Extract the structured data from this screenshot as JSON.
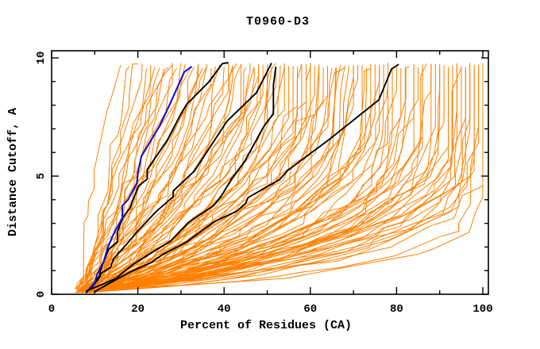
{
  "figure": {
    "title": "T0960-D3"
  },
  "colors": {
    "orange": "#ff8000",
    "black": "#000000",
    "blue": "#1010d8",
    "frame": "#000000",
    "background": "#ffffff"
  },
  "chart_data": {
    "type": "line",
    "title": "T0960-D3",
    "xlabel": "Percent of Residues (CA)",
    "ylabel": "Distance Cutoff, A",
    "xlim": [
      0,
      101.3
    ],
    "ylim": [
      0,
      10.3
    ],
    "x_major_ticks": [
      0,
      20,
      40,
      60,
      80,
      100
    ],
    "x_minor_ticks": [
      10,
      30,
      50,
      70,
      90
    ],
    "y_major_ticks": [
      0,
      5,
      10
    ],
    "y_minor_ticks": [
      1,
      2,
      3,
      4,
      6,
      7,
      8,
      9
    ],
    "grid": false,
    "legend": null,
    "description": "Cumulative plot: percent of CA residues (x) under a distance cutoff in Angstroms (y). Each curve is one model. Curves are approximated by start percent x0, final percent x1 at cutoff ~9.7, and shape factor q (x = x0 + (x1-x0)*(1-(1-y/ytop)^q)).",
    "curves": {
      "blue_curve": {
        "color_key": "blue",
        "x0": 8.5,
        "x1": 32.5,
        "q": 0.85
      },
      "black_curves": [
        {
          "x0": 9.0,
          "x1": 41.0,
          "q": 0.72
        },
        {
          "x0": 8.0,
          "x1": 51.0,
          "q": 1.1
        },
        {
          "x0": 8.0,
          "x1": 52.0,
          "q": 2.15
        },
        {
          "x0": 10.0,
          "x1": 80.5,
          "q": 1.35
        }
      ],
      "orange_curves": [
        [
          6,
          16,
          0.8
        ],
        [
          7,
          18,
          1.0
        ],
        [
          8,
          20,
          0.9
        ],
        [
          6.5,
          22,
          1.1
        ],
        [
          9,
          24,
          0.9
        ],
        [
          7.5,
          25,
          1.3
        ],
        [
          10,
          26,
          1.0
        ],
        [
          6,
          27,
          1.2
        ],
        [
          8.5,
          28,
          1.4
        ],
        [
          7,
          29,
          1.1
        ],
        [
          9.5,
          30,
          1.2
        ],
        [
          6,
          31,
          1.5
        ],
        [
          8,
          32,
          1.1
        ],
        [
          10.5,
          33,
          1.4
        ],
        [
          7,
          34,
          1.6
        ],
        [
          9,
          35,
          1.3
        ],
        [
          6.5,
          36,
          1.7
        ],
        [
          8,
          37,
          1.4
        ],
        [
          11,
          38,
          1.8
        ],
        [
          7.5,
          39,
          1.5
        ],
        [
          6,
          40,
          1.9
        ],
        [
          9,
          41,
          1.6
        ],
        [
          7,
          42,
          2.0
        ],
        [
          10,
          43,
          1.7
        ],
        [
          8,
          44,
          2.1
        ],
        [
          6.5,
          45,
          1.8
        ],
        [
          9.5,
          46,
          2.2
        ],
        [
          7,
          47,
          1.9
        ],
        [
          11,
          48,
          2.3
        ],
        [
          8,
          49,
          2.0
        ],
        [
          6,
          50,
          2.4
        ],
        [
          9,
          51,
          2.1
        ],
        [
          7.5,
          52,
          2.5
        ],
        [
          10,
          53,
          2.2
        ],
        [
          8,
          54,
          2.6
        ],
        [
          6.5,
          55,
          2.3
        ],
        [
          9,
          56,
          2.7
        ],
        [
          7,
          57,
          2.4
        ],
        [
          10.5,
          58,
          2.8
        ],
        [
          8,
          59,
          2.5
        ],
        [
          6,
          60,
          2.9
        ],
        [
          9.5,
          61,
          2.6
        ],
        [
          7,
          62,
          3.0
        ],
        [
          10,
          63,
          2.7
        ],
        [
          8.5,
          64,
          3.1
        ],
        [
          6.5,
          65,
          2.8
        ],
        [
          9,
          66,
          3.2
        ],
        [
          7.5,
          67,
          2.9
        ],
        [
          11,
          68,
          3.3
        ],
        [
          8,
          69,
          3.0
        ],
        [
          6,
          70,
          3.4
        ],
        [
          9,
          71,
          3.1
        ],
        [
          7,
          72,
          3.5
        ],
        [
          10,
          73,
          3.2
        ],
        [
          8,
          74,
          3.6
        ],
        [
          6.5,
          75,
          3.3
        ],
        [
          9.5,
          76,
          3.7
        ],
        [
          7,
          77,
          3.4
        ],
        [
          10.5,
          78,
          3.8
        ],
        [
          8,
          79,
          3.5
        ],
        [
          6,
          80,
          3.9
        ],
        [
          9,
          81,
          3.6
        ],
        [
          7.5,
          82,
          4.0
        ],
        [
          10,
          83,
          3.7
        ],
        [
          8,
          84,
          4.1
        ],
        [
          6.5,
          85,
          3.8
        ],
        [
          9,
          86,
          4.2
        ],
        [
          7,
          87,
          3.9
        ],
        [
          10.5,
          88,
          4.3
        ],
        [
          8,
          89,
          4.0
        ],
        [
          6,
          90,
          4.5
        ],
        [
          9.5,
          91,
          4.1
        ],
        [
          7,
          92,
          4.7
        ],
        [
          10,
          93,
          4.2
        ],
        [
          8.5,
          94,
          4.9
        ],
        [
          6.5,
          95,
          4.4
        ],
        [
          9,
          96,
          5.2
        ],
        [
          7.5,
          97,
          4.6
        ],
        [
          10,
          98,
          5.5
        ],
        [
          8,
          99,
          5.0
        ],
        [
          6,
          100,
          6.0
        ],
        [
          9,
          100,
          9.0
        ],
        [
          7,
          99,
          8.0
        ],
        [
          8,
          97,
          6.5
        ],
        [
          7.5,
          95,
          5.8
        ],
        [
          6.5,
          21,
          1.0
        ],
        [
          8,
          23,
          1.2
        ],
        [
          9.5,
          34,
          1.2
        ],
        [
          7,
          44,
          1.6
        ],
        [
          10,
          54,
          2.0
        ],
        [
          6,
          64,
          2.5
        ],
        [
          8.5,
          74,
          3.0
        ],
        [
          9,
          84,
          3.5
        ],
        [
          7,
          94,
          4.0
        ],
        [
          10.5,
          60,
          2.2
        ],
        [
          5.5,
          36,
          1.1
        ],
        [
          6,
          47,
          1.5
        ],
        [
          7,
          58,
          1.9
        ],
        [
          8,
          68,
          2.4
        ],
        [
          9,
          78,
          2.9
        ],
        [
          10,
          88,
          3.4
        ],
        [
          5.5,
          98,
          4.5
        ],
        [
          6.5,
          42,
          1.3
        ],
        [
          7.5,
          66,
          2.1
        ],
        [
          8.5,
          90,
          3.8
        ],
        [
          5.5,
          28,
          0.9
        ],
        [
          6,
          52,
          1.7
        ],
        [
          7,
          76,
          2.6
        ],
        [
          8,
          96,
          4.3
        ],
        [
          9,
          50,
          1.8
        ],
        [
          10,
          70,
          2.3
        ],
        [
          11,
          92,
          3.6
        ],
        [
          5.5,
          62,
          2.0
        ],
        [
          6.5,
          86,
          3.2
        ],
        [
          7.5,
          48,
          1.4
        ]
      ]
    }
  }
}
